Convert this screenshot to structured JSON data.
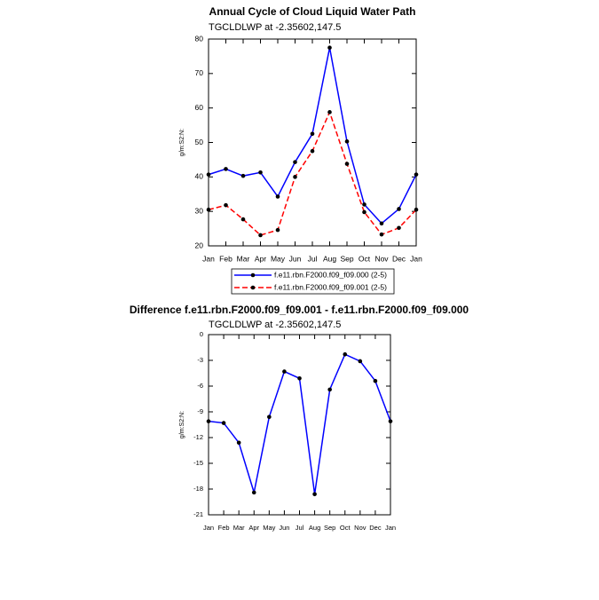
{
  "chart_data": [
    {
      "type": "line",
      "title": "Annual Cycle of Cloud Liquid Water Path",
      "subtitle": "TGCLDLWP at -2.35602,147.5",
      "y_label": "g/m:S2:N:",
      "categories": [
        "Jan",
        "Feb",
        "Mar",
        "Apr",
        "May",
        "Jun",
        "Jul",
        "Aug",
        "Sep",
        "Oct",
        "Nov",
        "Dec",
        "Jan"
      ],
      "series": [
        {
          "name": "f.e11.rbn.F2000.f09_f09.000 (2-5)",
          "color": "#0000ff",
          "dashed": false,
          "values": [
            40.7,
            42.3,
            40.3,
            41.3,
            34.3,
            44.3,
            52.5,
            77.5,
            50.3,
            32,
            26.5,
            30.7,
            40.7
          ]
        },
        {
          "name": "f.e11.rbn.F2000.f09_f09.001 (2-5)",
          "color": "#ff0000",
          "dashed": true,
          "values": [
            30.5,
            31.8,
            27.7,
            23.1,
            24.6,
            40,
            47.5,
            58.8,
            43.8,
            29.8,
            23.3,
            25.2,
            30.5
          ]
        }
      ],
      "ylim": [
        20,
        80
      ],
      "yticks": [
        20,
        30,
        40,
        50,
        60,
        70,
        80
      ],
      "legend": "bottom"
    },
    {
      "type": "line",
      "title": "Difference f.e11.rbn.F2000.f09_f09.001 - f.e11.rbn.F2000.f09_f09.000",
      "subtitle": "TGCLDLWP at -2.35602,147.5",
      "y_label": "g/m:S2:N:",
      "categories": [
        "Jan",
        "Feb",
        "Mar",
        "Apr",
        "May",
        "Jun",
        "Jul",
        "Aug",
        "Sep",
        "Oct",
        "Nov",
        "Dec",
        "Jan"
      ],
      "series": [
        {
          "color": "#0000ff",
          "dashed": false,
          "values": [
            -10.1,
            -10.3,
            -12.6,
            -18.4,
            -9.6,
            -4.3,
            -5.1,
            -18.6,
            -6.4,
            -2.3,
            -3.1,
            -5.4,
            -10.1
          ]
        }
      ],
      "ylim": [
        -21,
        0
      ],
      "yticks": [
        0,
        -3,
        -6,
        -9,
        -12,
        -15,
        -18,
        -21
      ]
    }
  ]
}
